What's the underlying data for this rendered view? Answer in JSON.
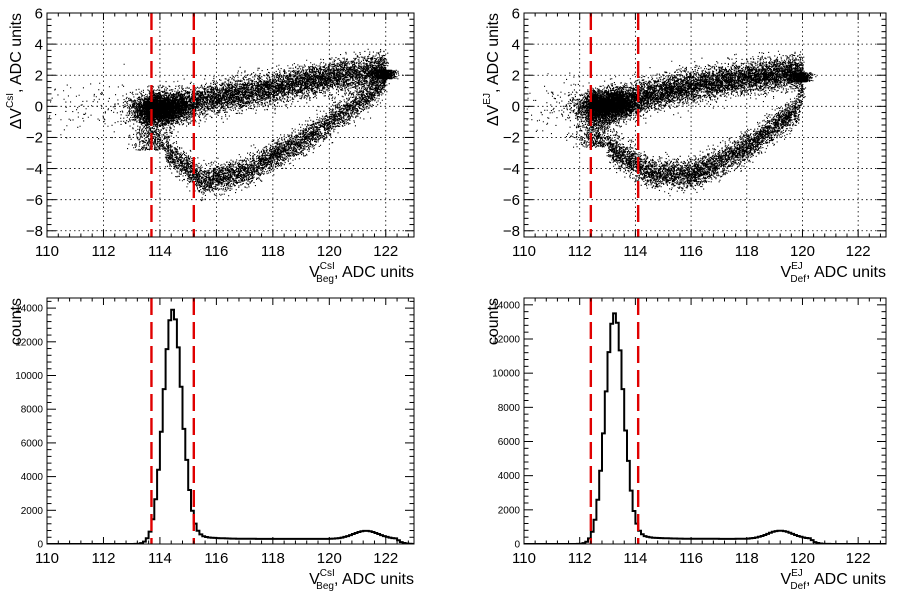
{
  "colors": {
    "cut_line": "#e00000",
    "data": "#000000",
    "grid": "#000000",
    "background": "#ffffff"
  },
  "chart_data": [
    {
      "type": "scatter",
      "panel": "top-left",
      "xlabel": {
        "main": "V",
        "sup": "CsI",
        "sub": "Beg",
        "rest": ", ADC units"
      },
      "ylabel": {
        "prefix": "ΔV",
        "sup": "CsI",
        "rest": ", ADC units"
      },
      "xlim": [
        110,
        123
      ],
      "ylim": [
        -8.4,
        6
      ],
      "xticks": [
        110,
        112,
        114,
        116,
        118,
        120,
        122
      ],
      "yticks": [
        -8,
        -6,
        -4,
        -2,
        0,
        2,
        4,
        6
      ],
      "xtick_labels": [
        "110",
        "112",
        "114",
        "116",
        "118",
        "120",
        "122"
      ],
      "ytick_labels": [
        "−8",
        "−6",
        "−4",
        "−2",
        "0",
        "2",
        "4",
        "6"
      ],
      "grid": true,
      "cut_lines": [
        113.7,
        115.2
      ],
      "distribution": {
        "upper_band": [
          [
            113.5,
            -0.2
          ],
          [
            116,
            0.6
          ],
          [
            118,
            1.2
          ],
          [
            120,
            1.9
          ],
          [
            122,
            2.4
          ]
        ],
        "lower_band": [
          [
            114.2,
            -2.8
          ],
          [
            115.5,
            -4.8
          ],
          [
            117,
            -4.2
          ],
          [
            119,
            -2.2
          ],
          [
            121,
            0.2
          ],
          [
            122,
            1.8
          ]
        ],
        "blob_center": [
          114.0,
          -0.1
        ]
      }
    },
    {
      "type": "scatter",
      "panel": "top-right",
      "xlabel": {
        "main": "V",
        "sup": "EJ",
        "sub": "Def",
        "rest": ", ADC units"
      },
      "ylabel": {
        "prefix": "ΔV",
        "sup": "EJ",
        "rest": ", ADC units"
      },
      "xlim": [
        110,
        123
      ],
      "ylim": [
        -8.4,
        6
      ],
      "xticks": [
        110,
        112,
        114,
        116,
        118,
        120,
        122
      ],
      "yticks": [
        -8,
        -6,
        -4,
        -2,
        0,
        2,
        4,
        6
      ],
      "xtick_labels": [
        "110",
        "112",
        "114",
        "116",
        "118",
        "120",
        "122"
      ],
      "ytick_labels": [
        "−8",
        "−6",
        "−4",
        "−2",
        "0",
        "2",
        "4",
        "6"
      ],
      "grid": true,
      "cut_lines": [
        112.4,
        114.1
      ],
      "distribution": {
        "upper_band": [
          [
            112.3,
            -0.2
          ],
          [
            114.5,
            0.8
          ],
          [
            116.5,
            1.5
          ],
          [
            118.5,
            2.0
          ],
          [
            120,
            2.2
          ]
        ],
        "lower_band": [
          [
            113.0,
            -2.6
          ],
          [
            114.5,
            -4.2
          ],
          [
            116,
            -4.4
          ],
          [
            118,
            -2.6
          ],
          [
            119.8,
            -0.2
          ],
          [
            120,
            1.6
          ]
        ],
        "blob_center": [
          113.0,
          0.1
        ]
      }
    },
    {
      "type": "histogram",
      "panel": "bottom-left",
      "xlabel": {
        "main": "V",
        "sup": "CsI",
        "sub": "Beg",
        "rest": ", ADC units"
      },
      "ylabel": {
        "text": "counts"
      },
      "xlim": [
        110,
        123
      ],
      "ylim": [
        0,
        14600
      ],
      "xticks": [
        110,
        112,
        114,
        116,
        118,
        120,
        122
      ],
      "yticks": [
        0,
        2000,
        4000,
        6000,
        8000,
        10000,
        12000,
        14000
      ],
      "xtick_labels": [
        "110",
        "112",
        "114",
        "116",
        "118",
        "120",
        "122"
      ],
      "ytick_labels": [
        "0",
        "2000",
        "4000",
        "6000",
        "8000",
        "10000",
        "12000",
        "14000"
      ],
      "grid": false,
      "cut_lines": [
        113.7,
        115.2
      ],
      "peak": {
        "mean": 114.45,
        "sigma": 0.33,
        "height": 13900
      },
      "tail": {
        "level": 300,
        "bump_center": 121.3,
        "bump_height": 480,
        "end": 122.4
      }
    },
    {
      "type": "histogram",
      "panel": "bottom-right",
      "xlabel": {
        "main": "V",
        "sup": "EJ",
        "sub": "Def",
        "rest": ", ADC units"
      },
      "ylabel": {
        "text": "counts"
      },
      "xlim": [
        110,
        123
      ],
      "ylim": [
        0,
        14400
      ],
      "xticks": [
        110,
        112,
        114,
        116,
        118,
        120,
        122
      ],
      "yticks": [
        0,
        2000,
        4000,
        6000,
        8000,
        10000,
        12000,
        14000
      ],
      "xtick_labels": [
        "110",
        "112",
        "114",
        "116",
        "118",
        "120",
        "122"
      ],
      "ytick_labels": [
        "0",
        "2000",
        "4000",
        "6000",
        "8000",
        "10000",
        "12000",
        "14000"
      ],
      "grid": false,
      "cut_lines": [
        112.4,
        114.1
      ],
      "peak": {
        "mean": 113.25,
        "sigma": 0.33,
        "height": 13500
      },
      "tail": {
        "level": 300,
        "bump_center": 119.2,
        "bump_height": 480,
        "end": 120.3
      }
    }
  ]
}
